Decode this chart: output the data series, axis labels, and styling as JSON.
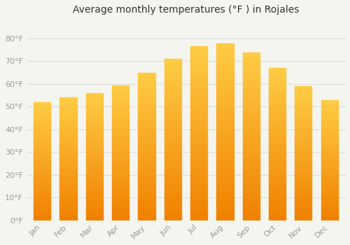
{
  "title": "Average monthly temperatures (°F ) in Rojales",
  "months": [
    "Jan",
    "Feb",
    "Mar",
    "Apr",
    "May",
    "Jun",
    "Jul",
    "Aug",
    "Sep",
    "Oct",
    "Nov",
    "Dec"
  ],
  "values": [
    52,
    54,
    56,
    59.5,
    65,
    71,
    76.5,
    78,
    74,
    67,
    59,
    53
  ],
  "bar_color_top": "#FDB823",
  "bar_color_bottom": "#F08000",
  "background_color": "#F5F5F0",
  "plot_bg_color": "#F5F5F0",
  "grid_color": "#DDDDDD",
  "ylim": [
    0,
    88
  ],
  "yticks": [
    0,
    10,
    20,
    30,
    40,
    50,
    60,
    70,
    80
  ],
  "ylabel_suffix": "°F",
  "title_fontsize": 10,
  "tick_fontsize": 8,
  "tick_color": "#999999",
  "bar_width": 0.65
}
